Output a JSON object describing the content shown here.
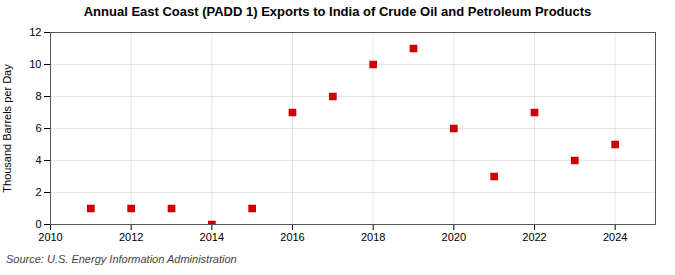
{
  "chart_data": {
    "type": "scatter",
    "title": "Annual East Coast (PADD 1) Exports to India of Crude Oil and Petroleum Products",
    "ylabel": "Thousand Barrels per Day",
    "source": "Source: U.S. Energy Information Administration",
    "x": [
      2011,
      2012,
      2013,
      2014,
      2015,
      2016,
      2017,
      2018,
      2019,
      2020,
      2021,
      2022,
      2023,
      2024
    ],
    "values": [
      1,
      1,
      1,
      0,
      1,
      7,
      8,
      10,
      11,
      6,
      3,
      7,
      4,
      5
    ],
    "xlim": [
      2010,
      2025
    ],
    "xticks": [
      2010,
      2012,
      2014,
      2016,
      2018,
      2020,
      2022,
      2024
    ],
    "ylim": [
      0,
      12
    ],
    "yticks": [
      0,
      2,
      4,
      6,
      8,
      10,
      12
    ],
    "color": "#cc0000",
    "marker": "square",
    "grid": true
  }
}
